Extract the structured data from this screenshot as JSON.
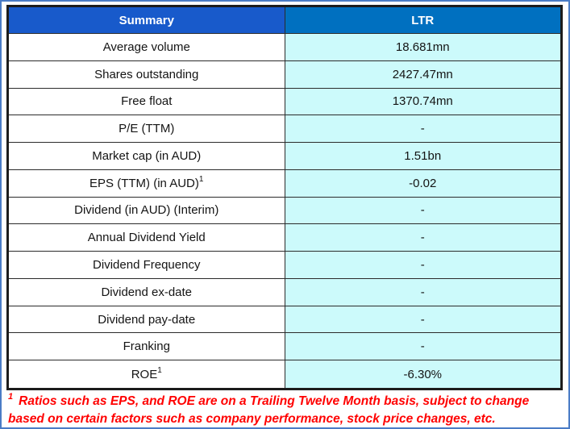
{
  "chart_data": {
    "type": "table",
    "title": "Summary",
    "columns": [
      "Summary",
      "LTR"
    ],
    "rows": [
      {
        "label": "Average volume",
        "sup": "",
        "value": "18.681mn"
      },
      {
        "label": "Shares outstanding",
        "sup": "",
        "value": "2427.47mn"
      },
      {
        "label": "Free float",
        "sup": "",
        "value": "1370.74mn"
      },
      {
        "label": "P/E (TTM)",
        "sup": "",
        "value": "-"
      },
      {
        "label": "Market cap (in AUD)",
        "sup": "",
        "value": "1.51bn"
      },
      {
        "label": "EPS (TTM) (in AUD)",
        "sup": "1",
        "value": "-0.02"
      },
      {
        "label": "Dividend (in AUD) (Interim)",
        "sup": "",
        "value": "-"
      },
      {
        "label": "Annual Dividend Yield",
        "sup": "",
        "value": "-"
      },
      {
        "label": "Dividend Frequency",
        "sup": "",
        "value": "-"
      },
      {
        "label": "Dividend ex-date",
        "sup": "",
        "value": "-"
      },
      {
        "label": "Dividend pay-date",
        "sup": "",
        "value": "-"
      },
      {
        "label": "Franking",
        "sup": "",
        "value": "-"
      },
      {
        "label": "ROE",
        "sup": "1",
        "value": "-6.30%"
      }
    ]
  },
  "table": {
    "header": {
      "col1": "Summary",
      "col2": "LTR"
    }
  },
  "footnote": {
    "sup": "1",
    "text": "Ratios such as EPS, and ROE are on a Trailing Twelve Month basis, subject to change based on certain factors such as company performance, stock price changes, etc."
  },
  "colors": {
    "header_left_bg": "#185ACB",
    "header_right_bg": "#0070C0",
    "value_column_bg": "#CCFAFB",
    "table_border": "#1C1C1C",
    "outer_frame_border": "#4A7CC6",
    "footnote_text": "#FF0000",
    "header_text": "#FFFFFF",
    "body_text": "#141414"
  }
}
